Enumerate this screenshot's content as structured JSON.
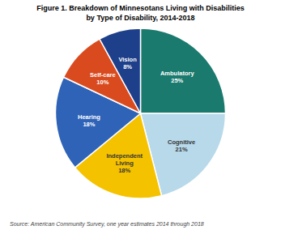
{
  "chart_data": {
    "type": "pie",
    "title": "Figure 1. Breakdown of Minnesotans Living with Disabilities",
    "subtitle": "by Type of Disability, 2014-2018",
    "annotations": [
      "Source: American Community Survey, one year estimates 2014 through 2018"
    ],
    "categories": [
      "Ambulatory",
      "Cognitive",
      "Independent\nLiving",
      "Hearing",
      "Self-care",
      "Vision"
    ],
    "values": [
      25,
      21,
      18,
      18,
      10,
      8
    ],
    "value_labels": [
      "25%",
      "21%",
      "18%",
      "18%",
      "10%",
      "8%"
    ],
    "colors": [
      "#1a7a6e",
      "#b8d9ea",
      "#f5c200",
      "#2e63b8",
      "#d94b1f",
      "#1e3f8a"
    ],
    "data_labels": true,
    "legend": false
  }
}
